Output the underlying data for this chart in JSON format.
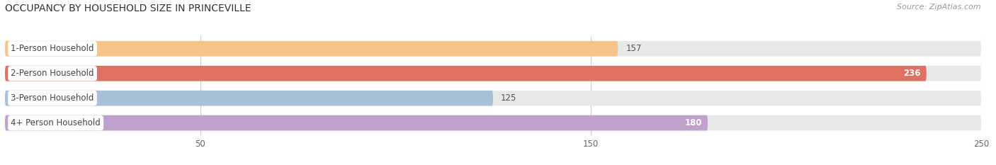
{
  "title": "OCCUPANCY BY HOUSEHOLD SIZE IN PRINCEVILLE",
  "source": "Source: ZipAtlas.com",
  "categories": [
    "1-Person Household",
    "2-Person Household",
    "3-Person Household",
    "4+ Person Household"
  ],
  "values": [
    157,
    236,
    125,
    180
  ],
  "bar_colors": [
    "#f5c48a",
    "#e07060",
    "#a8c0d8",
    "#c0a0cc"
  ],
  "label_colors": [
    "#555555",
    "#ffffff",
    "#555555",
    "#ffffff"
  ],
  "xlim": [
    0,
    250
  ],
  "xticks": [
    50,
    150,
    250
  ],
  "background_color": "#ffffff",
  "bar_background_color": "#e8e8e8",
  "title_fontsize": 10,
  "source_fontsize": 8,
  "label_fontsize": 8.5,
  "value_fontsize": 8.5,
  "bar_height": 0.62,
  "bar_gap": 0.18
}
